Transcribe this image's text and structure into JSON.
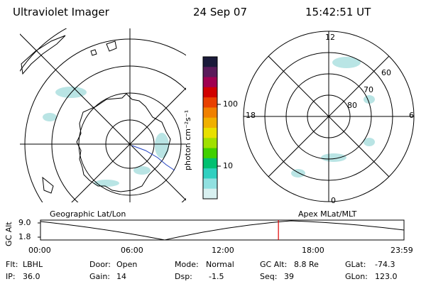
{
  "header": {
    "title": "Ultraviolet Imager",
    "date": "24 Sep 07",
    "time": "15:42:51 UT"
  },
  "colorbar": {
    "unit_label": "photon cm⁻²s⁻¹",
    "ticks": [
      "100",
      "10"
    ],
    "colors": [
      "#1a1a3a",
      "#5a1a5a",
      "#a00050",
      "#d00000",
      "#e84000",
      "#f08000",
      "#f0b000",
      "#e8e000",
      "#a0e000",
      "#40d000",
      "#00c070",
      "#30d0c0",
      "#90e0e0",
      "#d8f0f0"
    ]
  },
  "left_map": {
    "projection": "Geographic Lat/Lon"
  },
  "right_map": {
    "projection": "Apex MLat/MLT",
    "mlt_labels": {
      "top": "12",
      "left": "18",
      "right": "6",
      "bottom": "0"
    },
    "lat_labels": [
      "60",
      "70",
      "80"
    ]
  },
  "timeline": {
    "axis_title": "GC Alt",
    "y_ticks": [
      "9.0",
      "1.8"
    ],
    "x_ticks": [
      "00:00",
      "06:00",
      "12:00",
      "18:00",
      "23:59"
    ],
    "current_marker_hours": 15.71
  },
  "status": {
    "flt_label": "Flt:",
    "flt_value": "LBHL",
    "ip_label": "IP:",
    "ip_value": "36.0",
    "door_label": "Door:",
    "door_value": "Open",
    "gain_label": "Gain:",
    "gain_value": "14",
    "mode_label": "Mode:",
    "mode_value": "Normal",
    "dsp_label": "Dsp:",
    "dsp_value": "-1.5",
    "gcalt_label": "GC Alt:",
    "gcalt_value": "8.8 Re",
    "seq_label": "Seq:",
    "seq_value": "39",
    "glat_label": "GLat:",
    "glat_value": "-74.3",
    "glon_label": "GLon:",
    "glon_value": "123.0"
  }
}
